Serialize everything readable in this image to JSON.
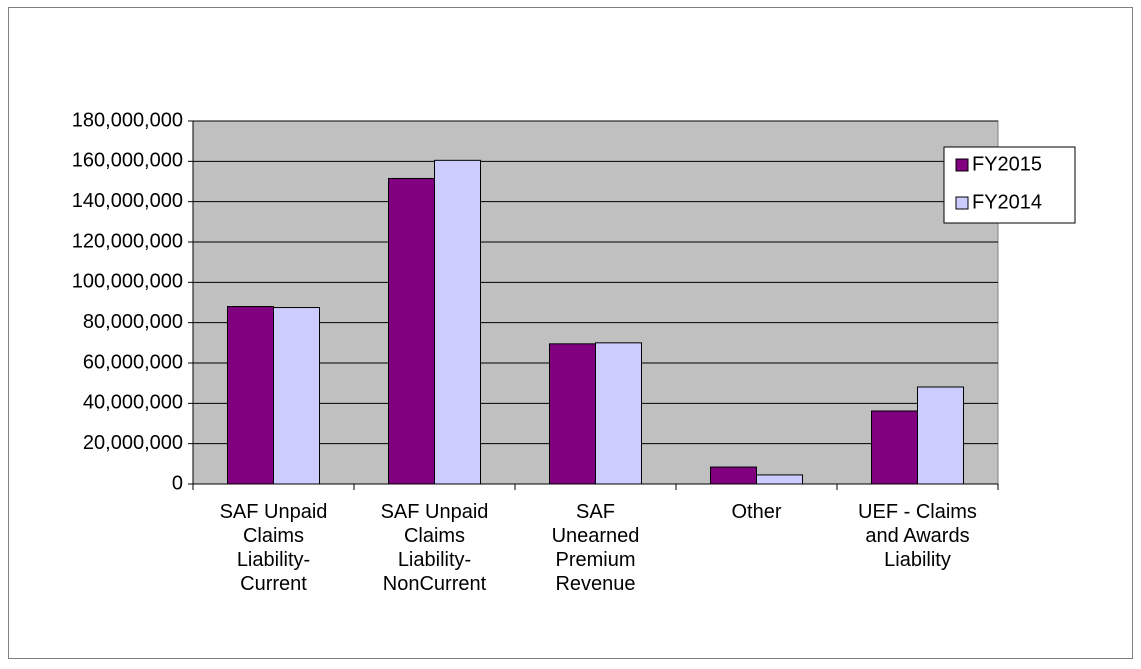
{
  "chart_data": {
    "type": "bar",
    "categories": [
      "SAF Unpaid Claims Liability-Current",
      "SAF Unpaid Claims Liability-NonCurrent",
      "SAF Unearned Premium Revenue",
      "Other",
      "UEF - Claims and Awards Liability"
    ],
    "series": [
      {
        "name": "FY2015",
        "color": "#800080",
        "values": [
          88000000,
          151500000,
          69500000,
          8400000,
          36200000
        ]
      },
      {
        "name": "FY2014",
        "color": "#ccccff",
        "values": [
          87500000,
          160500000,
          70000000,
          4500000,
          48100000
        ]
      }
    ],
    "ylim": [
      0,
      180000000
    ],
    "yticks": [
      0,
      {
        "value": 20000000,
        "label": "20,000,000"
      },
      {
        "value": 40000000,
        "label": "40,000,000"
      },
      {
        "value": 60000000,
        "label": "60,000,000"
      },
      {
        "value": 80000000,
        "label": "80,000,000"
      },
      {
        "value": 100000000,
        "label": "100,000,000"
      },
      {
        "value": 120000000,
        "label": "120,000,000"
      },
      {
        "value": 140000000,
        "label": "140,000,000"
      },
      {
        "value": 160000000,
        "label": "160,000,000"
      },
      {
        "value": 180000000,
        "label": "180,000,000"
      }
    ],
    "grid": true,
    "legend": "right",
    "plot_background": "#c0c0c0"
  }
}
